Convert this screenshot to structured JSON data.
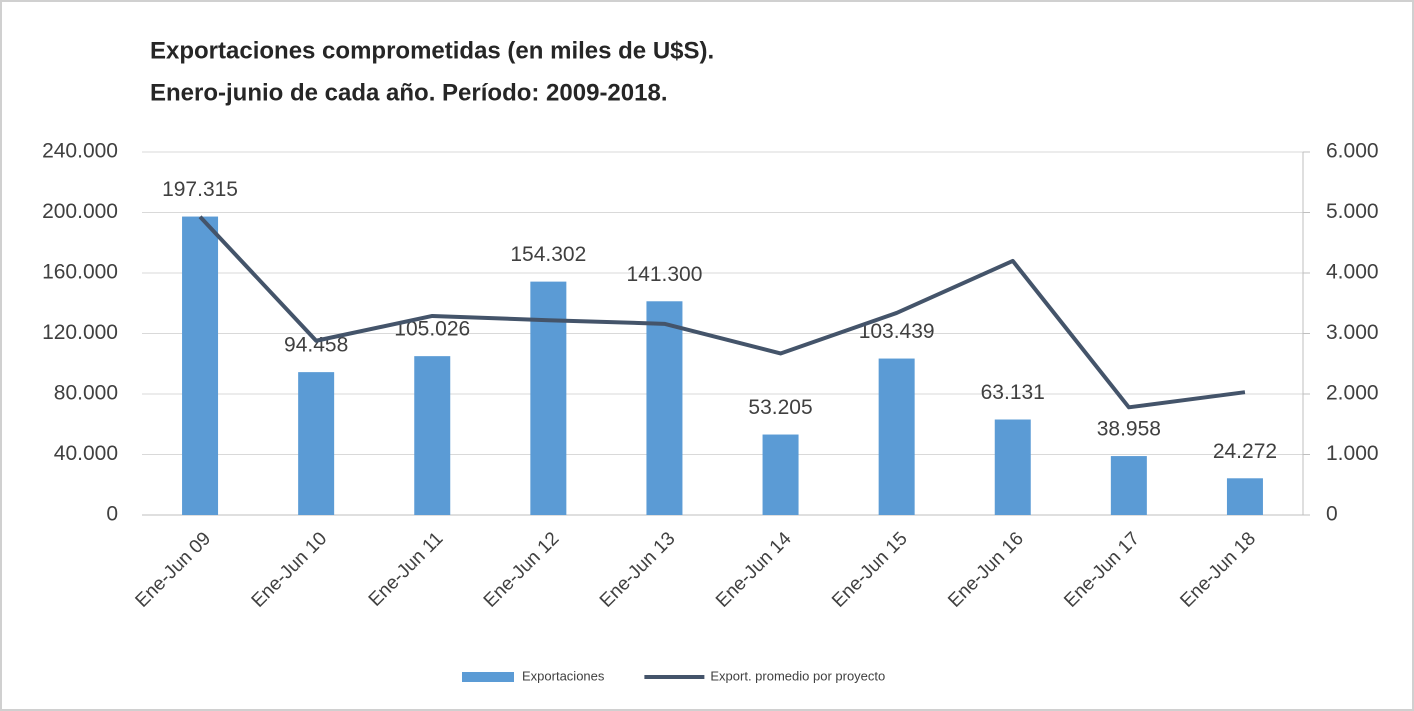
{
  "chart_data": {
    "type": "bar-line",
    "title": [
      "Exportaciones comprometidas (en miles de U$S).",
      "Enero-junio de cada año. Período: 2009-2018."
    ],
    "categories": [
      "Ene-Jun 09",
      "Ene-Jun 10",
      "Ene-Jun 11",
      "Ene-Jun 12",
      "Ene-Jun 13",
      "Ene-Jun 14",
      "Ene-Jun 15",
      "Ene-Jun 16",
      "Ene-Jun 17",
      "Ene-Jun 18"
    ],
    "series": [
      {
        "name": "Exportaciones",
        "type": "bar",
        "color": "#5b9bd5",
        "values": [
          197315,
          94458,
          105026,
          154302,
          141300,
          53205,
          103439,
          63131,
          38958,
          24272
        ],
        "value_labels": [
          "197.315",
          "94.458",
          "105.026",
          "154.302",
          "141.300",
          "53.205",
          "103.439",
          "63.131",
          "38.958",
          "24.272"
        ]
      },
      {
        "name": "Export. promedio por proyecto",
        "type": "line",
        "axis": "y2",
        "color": "#44546a",
        "values": [
          4930,
          2880,
          3290,
          3220,
          3160,
          2670,
          3340,
          4200,
          1780,
          2030
        ]
      }
    ],
    "ylim": [
      0,
      240000
    ],
    "yticks": [
      0,
      {
        "value": 40000,
        "label": "40.000"
      },
      {
        "value": 80000,
        "label": "80.000"
      },
      {
        "value": 120000,
        "label": "120.000"
      },
      {
        "value": 160000,
        "label": "160.000"
      },
      {
        "value": 200000,
        "label": "200.000"
      },
      {
        "value": 240000,
        "label": "240.000"
      }
    ],
    "y2lim": [
      0,
      6000
    ],
    "y2ticks": [
      0,
      {
        "value": 1000,
        "label": "1.000"
      },
      {
        "value": 2000,
        "label": "2.000"
      },
      {
        "value": 3000,
        "label": "3.000"
      },
      {
        "value": 4000,
        "label": "4.000"
      },
      {
        "value": 5000,
        "label": "5.000"
      },
      {
        "value": 6000,
        "label": "6.000"
      }
    ],
    "grid": true,
    "legend": "bottom"
  }
}
